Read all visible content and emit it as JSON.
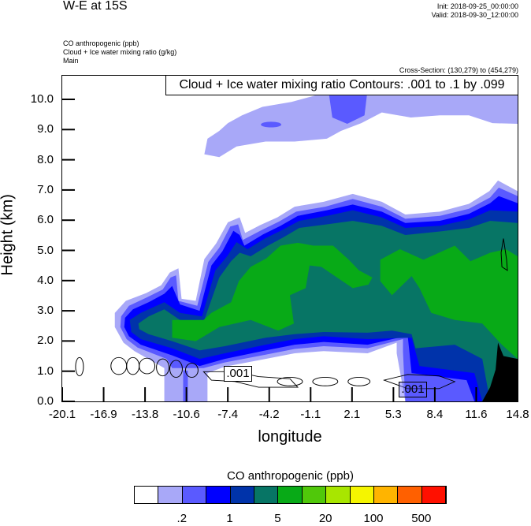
{
  "header": {
    "title": "W-E at 15S",
    "init": "Init: 2018-09-25_00:00:00",
    "valid": "Valid: 2018-09-30_12:00:00",
    "fields": [
      "CO anthropogenic   (ppb)",
      "Cloud + Ice water mixing ratio   (g/kg)",
      "Main"
    ],
    "cross_section": "Cross-Section: (130,279) to (454,279)"
  },
  "chart_data": {
    "type": "contour",
    "title": "W-E at 15S",
    "xlabel": "longitude",
    "ylabel": "Height (km)",
    "xlim": [
      -20.1,
      14.8
    ],
    "ylim": [
      0,
      10.8
    ],
    "x_ticks": [
      "-20.1",
      "-16.9",
      "-13.8",
      "-10.6",
      "-7.4",
      "-4.2",
      "-1.1",
      "2.1",
      "5.3",
      "8.4",
      "11.6",
      "14.8"
    ],
    "y_ticks": [
      "0.0",
      "1.0",
      "2.0",
      "3.0",
      "4.0",
      "5.0",
      "6.0",
      "7.0",
      "8.0",
      "9.0",
      "10.0"
    ],
    "y_tick_values": [
      0,
      1,
      2,
      3,
      4,
      5,
      6,
      7,
      8,
      9,
      10
    ],
    "contour_legend": "Cloud + Ice water mixing ratio Contours: .001 to .1 by .099",
    "contour_labels": [
      ".001",
      ".001"
    ],
    "colorbar": {
      "title": "CO anthropogenic  (ppb)",
      "colors": [
        "#FFFFFF",
        "#A8A8F8",
        "#5A5AFF",
        "#0000FF",
        "#0033AA",
        "#077565",
        "#08AA17",
        "#50C80A",
        "#A8E600",
        "#F5F500",
        "#FFB400",
        "#FF6000",
        "#FF1000"
      ],
      "labels": [
        ".2",
        "1",
        "5",
        "20",
        "100",
        "500"
      ],
      "label_boundaries": [
        2,
        4,
        6,
        8,
        10,
        12
      ]
    }
  }
}
